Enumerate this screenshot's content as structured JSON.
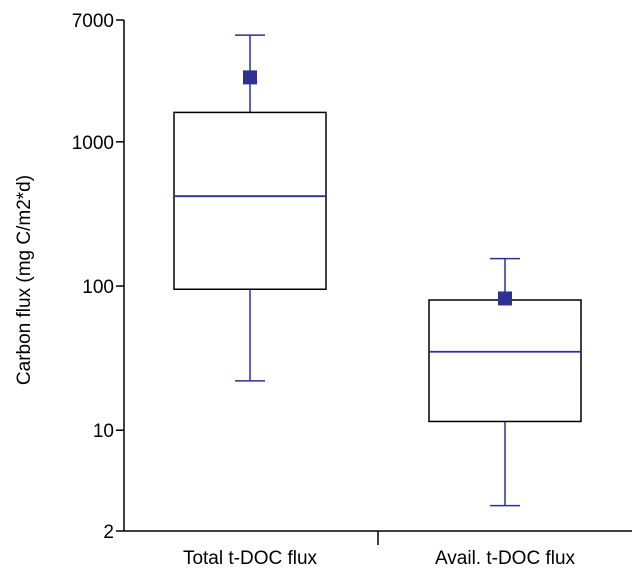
{
  "chart_data": {
    "type": "boxplot",
    "title": "",
    "xlabel": "",
    "ylabel": "Carbon flux (mg C/m2*d)",
    "y_scale": "log",
    "ylim": [
      2,
      7000
    ],
    "y_ticks": [
      {
        "value": 7000,
        "label": "7000"
      },
      {
        "value": 1000,
        "label": "1000"
      },
      {
        "value": 100,
        "label": "100"
      },
      {
        "value": 10,
        "label": "10"
      },
      {
        "value": 2,
        "label": "2"
      }
    ],
    "grid": false,
    "colors": {
      "box": "#000000",
      "median": "#2e3192",
      "whisker": "#2e3192",
      "mean_marker": "#2e3192"
    },
    "categories": [
      "Total t-DOC flux",
      "Avail. t-DOC flux"
    ],
    "boxes": [
      {
        "category": "Total t-DOC flux",
        "whisker_low": 22,
        "q1": 95,
        "median": 420,
        "q3": 1600,
        "whisker_high": 5500,
        "mean": 2800
      },
      {
        "category": "Avail. t-DOC flux",
        "whisker_low": 3,
        "q1": 11.5,
        "median": 35,
        "q3": 80,
        "whisker_high": 155,
        "mean": 82
      }
    ]
  }
}
